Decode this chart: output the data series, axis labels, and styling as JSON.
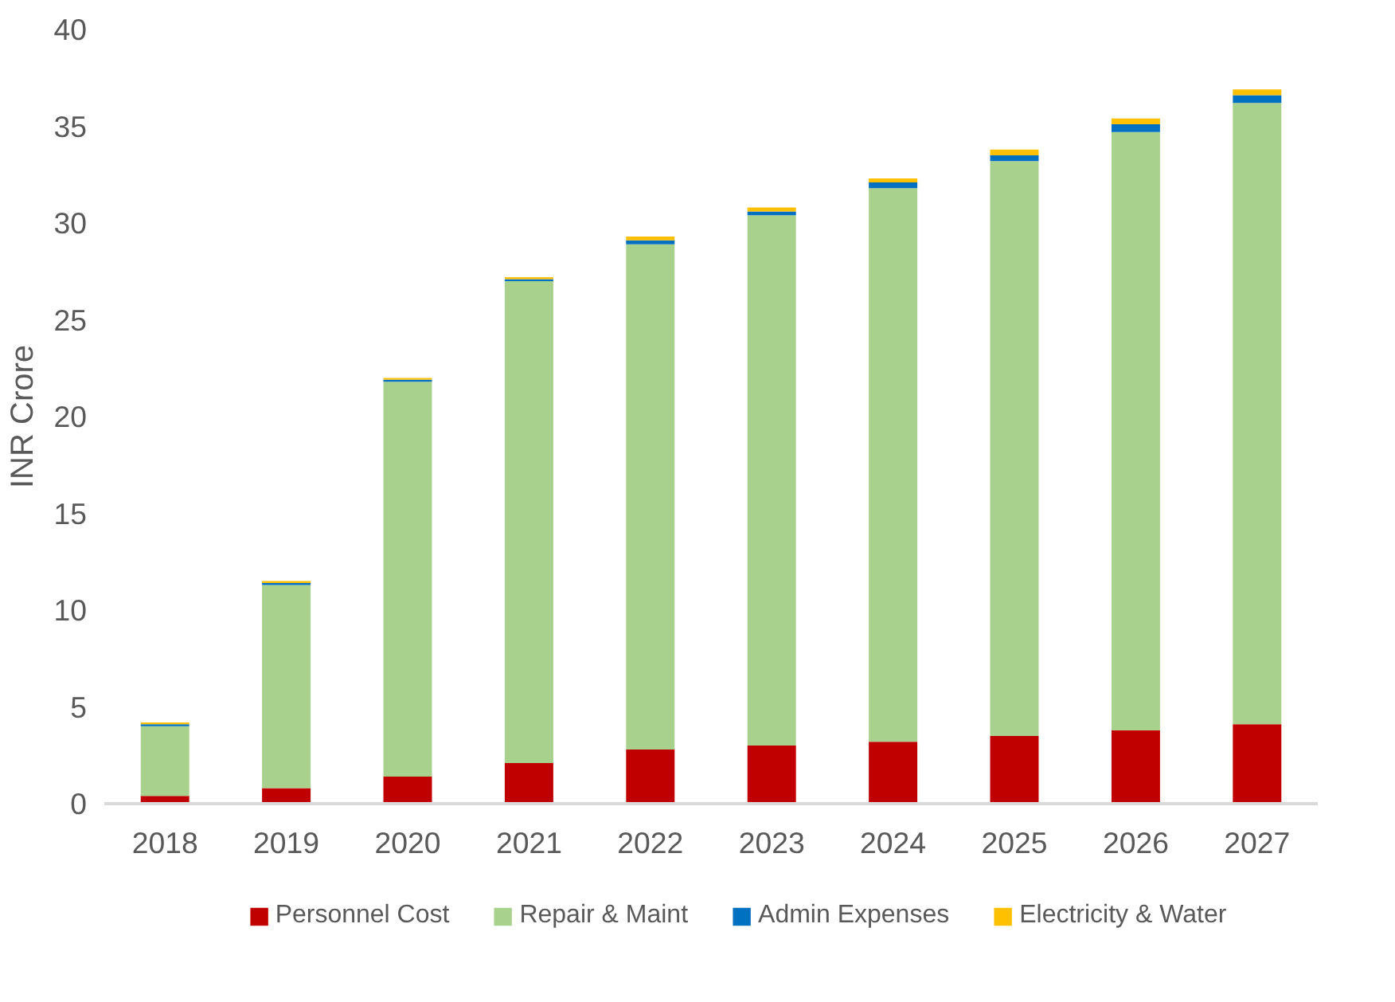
{
  "chart_data": {
    "type": "bar",
    "stacked": true,
    "ylabel": "INR Crore",
    "categories": [
      "2018",
      "2019",
      "2020",
      "2021",
      "2022",
      "2023",
      "2024",
      "2025",
      "2026",
      "2027"
    ],
    "series": [
      {
        "name": "Personnel Cost",
        "color": "#c00000",
        "values": [
          0.4,
          0.8,
          1.4,
          2.1,
          2.8,
          3.0,
          3.2,
          3.5,
          3.8,
          4.1
        ]
      },
      {
        "name": "Repair & Maint",
        "color": "#a9d18e",
        "values": [
          3.6,
          10.5,
          20.4,
          24.9,
          26.1,
          27.4,
          28.6,
          29.7,
          30.9,
          32.1
        ]
      },
      {
        "name": "Admin Expenses",
        "color": "#0070c0",
        "values": [
          0.1,
          0.1,
          0.1,
          0.1,
          0.2,
          0.2,
          0.3,
          0.3,
          0.4,
          0.4
        ]
      },
      {
        "name": "Electricity & Water",
        "color": "#ffc000",
        "values": [
          0.1,
          0.1,
          0.1,
          0.1,
          0.2,
          0.2,
          0.2,
          0.3,
          0.3,
          0.3
        ]
      }
    ],
    "ylim": [
      0,
      40
    ],
    "yticks": [
      0,
      5,
      10,
      15,
      20,
      25,
      30,
      35,
      40
    ],
    "grid": false,
    "legend": "bottom"
  }
}
